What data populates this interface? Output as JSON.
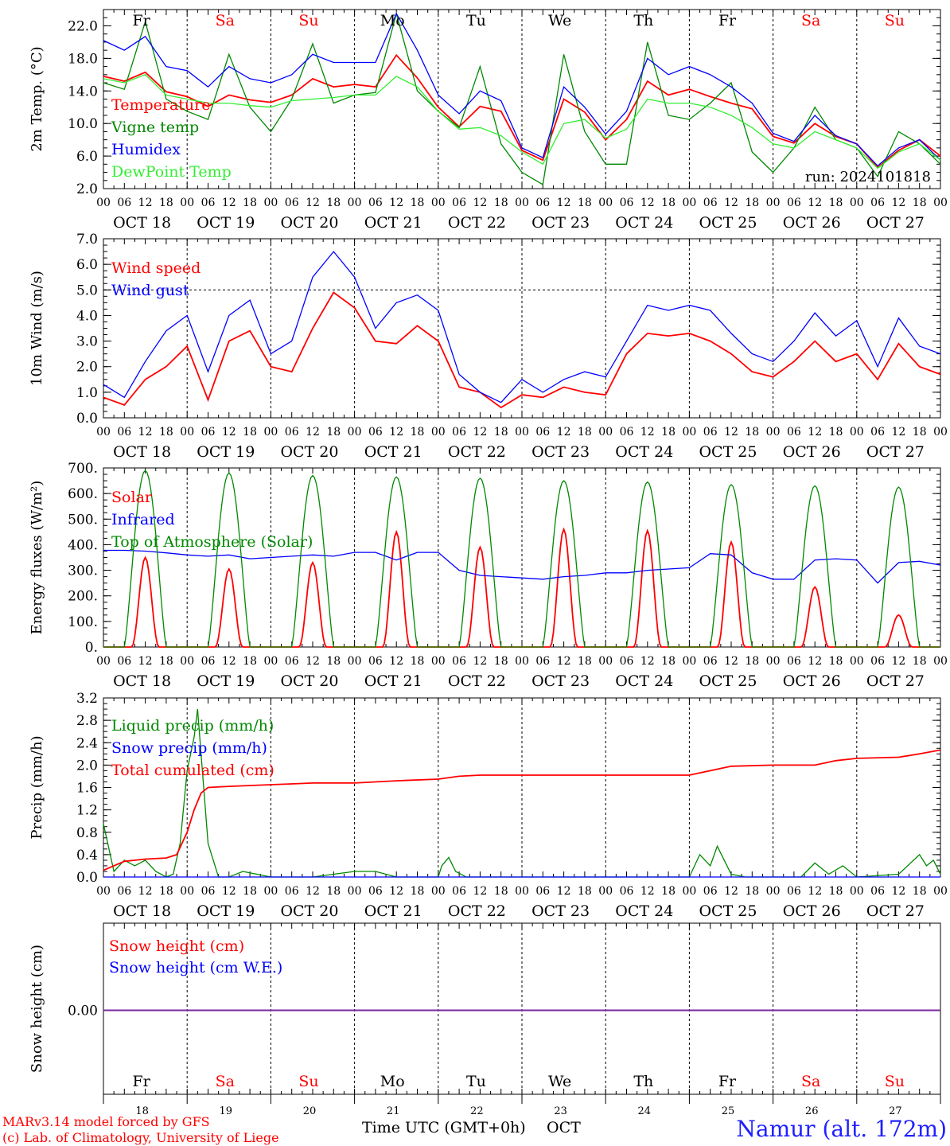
{
  "colors": {
    "red": "#ff0000",
    "green": "#008800",
    "blue": "#0000ff",
    "lightgreen": "#33ee33",
    "purple": "#7a2a9e",
    "weekend": "#ff0000",
    "weekday": "#000000",
    "location": "#2020ff"
  },
  "days": [
    "Fr",
    "Sa",
    "Su",
    "Mo",
    "Tu",
    "We",
    "Th",
    "Fr",
    "Sa",
    "Su"
  ],
  "weekend_days": [
    1,
    2,
    8,
    9
  ],
  "date_labels": [
    "OCT 18",
    "OCT 19",
    "OCT 20",
    "OCT 21",
    "OCT 22",
    "OCT 23",
    "OCT 24",
    "OCT 25",
    "OCT 26",
    "OCT 27"
  ],
  "day_numbers": [
    "18",
    "19",
    "20",
    "21",
    "22",
    "23",
    "24",
    "25",
    "26",
    "27"
  ],
  "hour_ticks": [
    "00",
    "06",
    "12",
    "18"
  ],
  "hour_end": "00",
  "footer": {
    "model": "MARv3.14 model forced by GFS",
    "lab": "(c) Lab. of Climatology, University of Liege",
    "xlabel": "Time UTC (GMT+0h)",
    "month": "OCT",
    "location": "Namur (alt. 172m)"
  },
  "chart_data": [
    {
      "type": "line",
      "ylabel": "2m Temp. (°C)",
      "ylim": [
        2.0,
        24.0
      ],
      "yticks": [
        "2.0",
        "6.0",
        "10.0",
        "14.0",
        "18.0",
        "22.0"
      ],
      "run_label": "run: 2024101818",
      "x_unit": "hours since OCT 18 00 UTC",
      "series": [
        {
          "name": "Temperature",
          "color": "red",
          "x": [
            0,
            6,
            12,
            18,
            24,
            30,
            36,
            42,
            48,
            54,
            60,
            66,
            72,
            78,
            84,
            90,
            96,
            102,
            108,
            114,
            120,
            126,
            132,
            138,
            144,
            150,
            156,
            162,
            168,
            174,
            180,
            186,
            192,
            198,
            204,
            210,
            216,
            222,
            228,
            234,
            240
          ],
          "values": [
            15.8,
            15.2,
            16.3,
            13.9,
            13.3,
            12.1,
            13.5,
            12.9,
            12.6,
            13.5,
            15.5,
            14.5,
            14.8,
            14.5,
            18.4,
            15.6,
            12.0,
            9.6,
            12.1,
            11.5,
            6.7,
            5.5,
            13.0,
            11.4,
            8.0,
            10.5,
            15.2,
            13.5,
            14.2,
            13.3,
            12.5,
            11.8,
            8.4,
            7.6,
            10.0,
            8.4,
            7.5,
            4.6,
            6.7,
            8.0,
            6.0
          ]
        },
        {
          "name": "Vigne temp",
          "color": "green",
          "x": [
            0,
            6,
            12,
            18,
            24,
            30,
            36,
            42,
            48,
            54,
            60,
            66,
            72,
            78,
            84,
            90,
            96,
            102,
            108,
            114,
            120,
            126,
            132,
            138,
            144,
            150,
            156,
            162,
            168,
            174,
            180,
            186,
            192,
            198,
            204,
            210,
            216,
            222,
            228,
            234,
            240
          ],
          "values": [
            15.0,
            14.2,
            22.5,
            13.0,
            11.5,
            10.5,
            18.5,
            12.0,
            9.0,
            13.0,
            19.8,
            12.5,
            13.5,
            13.8,
            23.5,
            14.0,
            11.5,
            9.5,
            17.0,
            7.5,
            4.0,
            2.5,
            18.5,
            9.0,
            5.0,
            5.0,
            20.0,
            11.0,
            10.5,
            12.5,
            15.0,
            6.5,
            4.0,
            7.0,
            12.0,
            8.0,
            7.0,
            3.5,
            9.0,
            7.5,
            5.0
          ]
        },
        {
          "name": "Humidex",
          "color": "blue",
          "x": [
            0,
            6,
            12,
            18,
            24,
            30,
            36,
            42,
            48,
            54,
            60,
            66,
            72,
            78,
            84,
            90,
            96,
            102,
            108,
            114,
            120,
            126,
            132,
            138,
            144,
            150,
            156,
            162,
            168,
            174,
            180,
            186,
            192,
            198,
            204,
            210,
            216,
            222,
            228,
            234,
            240
          ],
          "values": [
            20.2,
            19.0,
            20.7,
            17.0,
            16.5,
            14.5,
            17.0,
            15.5,
            15.0,
            16.0,
            18.5,
            17.5,
            17.5,
            17.5,
            23.5,
            19.0,
            13.5,
            11.2,
            14.0,
            12.8,
            7.0,
            5.8,
            14.5,
            12.0,
            8.7,
            11.5,
            18.0,
            16.0,
            17.0,
            16.0,
            14.5,
            12.5,
            8.8,
            7.8,
            11.0,
            8.5,
            7.5,
            4.8,
            7.0,
            8.0,
            5.5
          ]
        },
        {
          "name": "DewPoint Temp",
          "color": "lightgreen",
          "x": [
            0,
            6,
            12,
            18,
            24,
            30,
            36,
            42,
            48,
            54,
            60,
            66,
            72,
            78,
            84,
            90,
            96,
            102,
            108,
            114,
            120,
            126,
            132,
            138,
            144,
            150,
            156,
            162,
            168,
            174,
            180,
            186,
            192,
            198,
            204,
            210,
            216,
            222,
            228,
            234,
            240
          ],
          "values": [
            15.5,
            15.0,
            16.0,
            13.5,
            13.0,
            12.5,
            12.5,
            12.2,
            12.0,
            12.8,
            13.0,
            13.2,
            13.5,
            13.5,
            15.8,
            14.5,
            11.5,
            9.3,
            9.5,
            8.5,
            6.5,
            5.0,
            10.0,
            10.5,
            8.2,
            9.3,
            13.0,
            12.5,
            12.5,
            12.0,
            11.0,
            9.5,
            7.5,
            7.0,
            9.0,
            8.0,
            7.0,
            4.5,
            6.5,
            7.5,
            5.5
          ]
        }
      ]
    },
    {
      "type": "line",
      "ylabel": "10m Wind (m/s)",
      "ylim": [
        0.0,
        7.0
      ],
      "yticks": [
        "0.0",
        "1.0",
        "2.0",
        "3.0",
        "4.0",
        "5.0",
        "6.0",
        "7.0"
      ],
      "ref_line": 5.0,
      "x_unit": "hours since OCT 18 00 UTC",
      "series": [
        {
          "name": "Wind speed",
          "color": "red",
          "x": [
            0,
            6,
            12,
            18,
            24,
            30,
            36,
            42,
            48,
            54,
            60,
            66,
            72,
            78,
            84,
            90,
            96,
            102,
            108,
            114,
            120,
            126,
            132,
            138,
            144,
            150,
            156,
            162,
            168,
            174,
            180,
            186,
            192,
            198,
            204,
            210,
            216,
            222,
            228,
            234,
            240
          ],
          "values": [
            0.8,
            0.5,
            1.5,
            2.0,
            2.8,
            0.7,
            3.0,
            3.4,
            2.0,
            1.8,
            3.5,
            4.9,
            4.3,
            3.0,
            2.9,
            3.6,
            3.0,
            1.2,
            1.0,
            0.4,
            0.9,
            0.8,
            1.2,
            1.0,
            0.9,
            2.5,
            3.3,
            3.2,
            3.3,
            3.0,
            2.5,
            1.8,
            1.6,
            2.2,
            3.0,
            2.2,
            2.5,
            1.5,
            2.9,
            2.0,
            1.7
          ]
        },
        {
          "name": "Wind gust",
          "color": "blue",
          "x": [
            0,
            6,
            12,
            18,
            24,
            30,
            36,
            42,
            48,
            54,
            60,
            66,
            72,
            78,
            84,
            90,
            96,
            102,
            108,
            114,
            120,
            126,
            132,
            138,
            144,
            150,
            156,
            162,
            168,
            174,
            180,
            186,
            192,
            198,
            204,
            210,
            216,
            222,
            228,
            234,
            240
          ],
          "values": [
            1.3,
            0.8,
            2.2,
            3.4,
            4.0,
            1.8,
            4.0,
            4.6,
            2.5,
            3.0,
            5.5,
            6.5,
            5.5,
            3.5,
            4.5,
            4.8,
            4.2,
            1.7,
            1.0,
            0.6,
            1.5,
            1.0,
            1.5,
            1.8,
            1.6,
            3.0,
            4.4,
            4.2,
            4.4,
            4.2,
            3.3,
            2.5,
            2.2,
            3.0,
            4.1,
            3.2,
            3.8,
            2.0,
            3.9,
            2.8,
            2.5
          ]
        }
      ]
    },
    {
      "type": "line",
      "ylabel": "Energy fluxes (W/m²)",
      "ylim": [
        0,
        700
      ],
      "yticks": [
        "0.",
        "100.",
        "200.",
        "300.",
        "400.",
        "500.",
        "600.",
        "700."
      ],
      "x_unit": "hours since OCT 18 00 UTC",
      "series": [
        {
          "name": "Solar",
          "color": "red",
          "day_peaks": [
            350,
            305,
            330,
            450,
            390,
            460,
            455,
            410,
            235,
            125
          ]
        },
        {
          "name": "Infrared",
          "color": "blue",
          "x": [
            0,
            6,
            12,
            18,
            24,
            30,
            36,
            42,
            48,
            54,
            60,
            66,
            72,
            78,
            84,
            90,
            96,
            102,
            108,
            114,
            120,
            126,
            132,
            138,
            144,
            150,
            156,
            162,
            168,
            174,
            180,
            186,
            192,
            198,
            204,
            210,
            216,
            222,
            228,
            234,
            240
          ],
          "values": [
            378,
            378,
            375,
            368,
            360,
            355,
            360,
            345,
            350,
            355,
            360,
            355,
            370,
            370,
            340,
            370,
            370,
            300,
            280,
            275,
            270,
            265,
            275,
            280,
            290,
            290,
            300,
            305,
            310,
            365,
            360,
            290,
            265,
            265,
            340,
            345,
            340,
            250,
            330,
            335,
            320
          ]
        },
        {
          "name": "Top of Atmosphere (Solar)",
          "color": "green",
          "day_peaks": [
            690,
            680,
            670,
            665,
            660,
            650,
            645,
            635,
            630,
            625
          ]
        }
      ]
    },
    {
      "type": "line",
      "ylabel": "Precip (mm/h)",
      "ylim": [
        0.0,
        3.2
      ],
      "yticks": [
        "0.0",
        "0.4",
        "0.8",
        "1.2",
        "1.6",
        "2.0",
        "2.4",
        "2.8",
        "3.2"
      ],
      "x_unit": "hours since OCT 18 00 UTC",
      "series": [
        {
          "name": "Liquid precip (mm/h)",
          "color": "green",
          "x": [
            0,
            3,
            6,
            9,
            12,
            15,
            18,
            20,
            22,
            24,
            26,
            27,
            28,
            30,
            33,
            36,
            40,
            44,
            48,
            60,
            72,
            78,
            84,
            96,
            97,
            99,
            101,
            104,
            120,
            168,
            171,
            174,
            176,
            180,
            184,
            200,
            204,
            208,
            212,
            216,
            228,
            234,
            236,
            238,
            240
          ],
          "values": [
            0.95,
            0.1,
            0.3,
            0.2,
            0.3,
            0.1,
            0.0,
            0.05,
            0.6,
            1.9,
            2.5,
            3.0,
            2.2,
            0.6,
            0.0,
            0.0,
            0.1,
            0.05,
            0.0,
            0.0,
            0.1,
            0.1,
            0.0,
            0.0,
            0.2,
            0.35,
            0.1,
            0.0,
            0.0,
            0.0,
            0.4,
            0.2,
            0.55,
            0.05,
            0.0,
            0.0,
            0.25,
            0.05,
            0.2,
            0.0,
            0.05,
            0.4,
            0.2,
            0.3,
            0.05
          ]
        },
        {
          "name": "Snow precip (mm/h)",
          "color": "blue",
          "x": [
            0,
            240
          ],
          "values": [
            0.0,
            0.0
          ]
        },
        {
          "name": "Total cumulated (cm)",
          "color": "red",
          "x": [
            0,
            6,
            12,
            18,
            21,
            24,
            26,
            28,
            30,
            36,
            48,
            60,
            72,
            84,
            96,
            102,
            108,
            120,
            144,
            168,
            180,
            192,
            204,
            210,
            216,
            228,
            234,
            240
          ],
          "values": [
            0.12,
            0.28,
            0.32,
            0.34,
            0.4,
            0.8,
            1.2,
            1.5,
            1.6,
            1.62,
            1.65,
            1.68,
            1.68,
            1.72,
            1.75,
            1.8,
            1.82,
            1.82,
            1.82,
            1.82,
            1.98,
            2.0,
            2.0,
            2.08,
            2.12,
            2.14,
            2.2,
            2.27
          ]
        }
      ]
    },
    {
      "type": "line",
      "ylabel": "Snow height (cm)",
      "yticks": [
        "0.00"
      ],
      "x_unit": "hours since OCT 18 00 UTC",
      "series": [
        {
          "name": "Snow height (cm)",
          "color": "red",
          "x": [
            0,
            240
          ],
          "values": [
            0.0,
            0.0
          ]
        },
        {
          "name": "Snow height (cm W.E.)",
          "color": "blue",
          "x": [
            0,
            240
          ],
          "values": [
            0.0,
            0.0
          ]
        }
      ]
    }
  ]
}
